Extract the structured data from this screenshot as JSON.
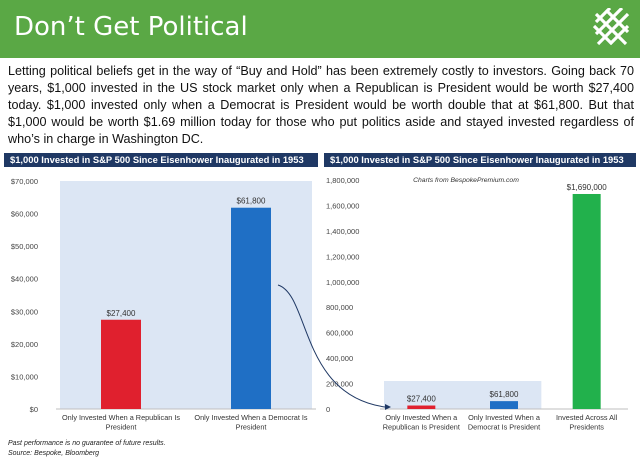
{
  "header": {
    "title": "Don’t Get Political"
  },
  "intro": "Letting political beliefs get in the way of “Buy and Hold” has been extremely costly to investors.  Going back 70 years, $1,000 invested in the US stock market only when a Republican is President would be worth $27,400 today.  $1,000 invested only when a Democrat is President would be worth double that at $61,800.  But that $1,000 would be worth $1.69 million today for those who put politics aside and stayed invested regardless of who’s in charge in Washington DC.",
  "chart_data": [
    {
      "type": "bar",
      "title": "$1,000 Invested in S&P 500 Since Eisenhower Inaugurated in 1953",
      "categories": [
        [
          "Only Invested When a Republican Is",
          "President"
        ],
        [
          "Only Invested When a Democrat Is",
          "President"
        ]
      ],
      "values": [
        27400,
        61800
      ],
      "data_labels": [
        "$27,400",
        "$61,800"
      ],
      "colors": [
        "#e0202e",
        "#1f6fc5"
      ],
      "ylim": [
        0,
        70000
      ],
      "yticks": [
        "$0",
        "$10,000",
        "$20,000",
        "$30,000",
        "$40,000",
        "$50,000",
        "$60,000",
        "$70,000"
      ]
    },
    {
      "type": "bar",
      "title": "$1,000 Invested in S&P 500 Since Eisenhower Inaugurated in 1953",
      "subtitle": "Charts from BespokePremium.com",
      "categories": [
        [
          "Only Invested When a",
          "Republican Is President"
        ],
        [
          "Only Invested When a",
          "Democrat Is President"
        ],
        [
          "Invested Across All",
          "Presidents"
        ]
      ],
      "values": [
        27400,
        61800,
        1690000
      ],
      "data_labels": [
        "$27,400",
        "$61,800",
        "$1,690,000"
      ],
      "colors": [
        "#e0202e",
        "#1f6fc5",
        "#22b14c"
      ],
      "ylim": [
        0,
        1800000
      ],
      "yticks": [
        "0",
        "200,000",
        "400,000",
        "600,000",
        "800,000",
        "1,000,000",
        "1,200,000",
        "1,400,000",
        "1,600,000",
        "1,800,000"
      ]
    }
  ],
  "footnotes": {
    "disclaimer": "Past performance is no guarantee of future results.",
    "source": "Source: Bespoke, Bloomberg"
  },
  "colors": {
    "header": "#5aa845",
    "title_bar_left": "#1f3864",
    "title_bar_right": "#1f3864",
    "highlight": "#dce6f4"
  }
}
